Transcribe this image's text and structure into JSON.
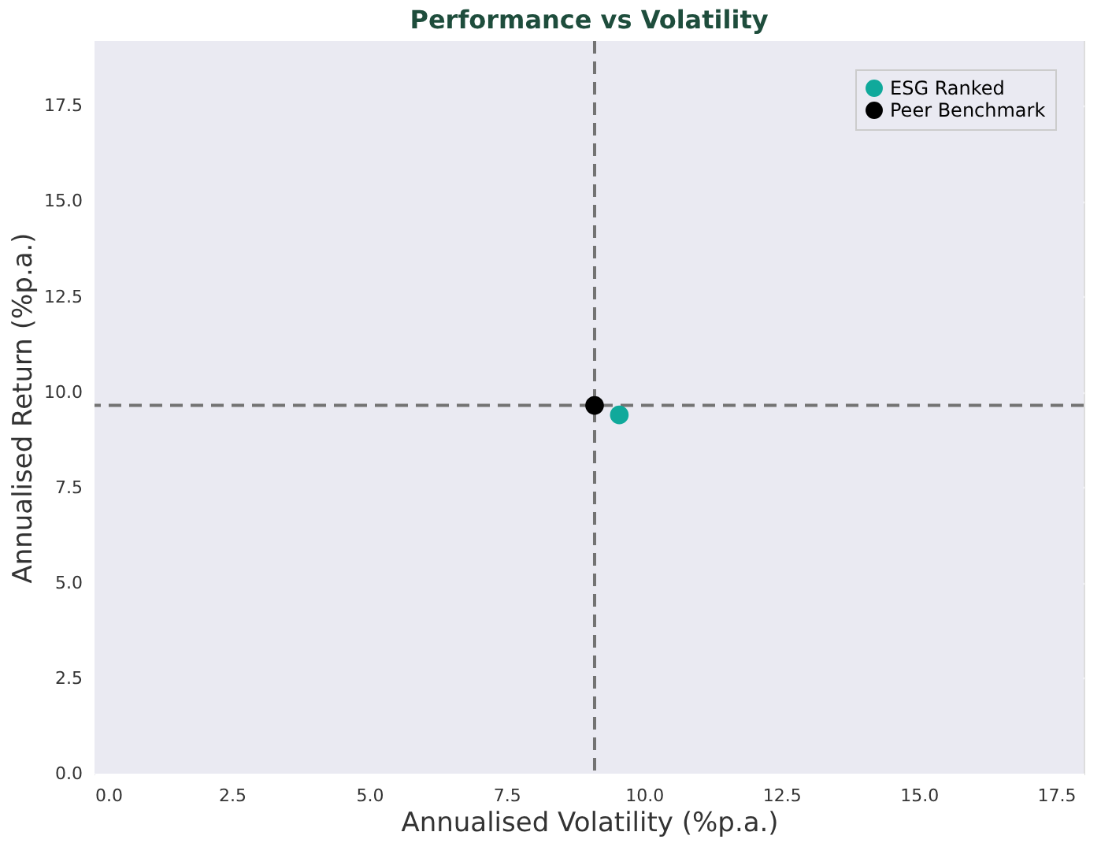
{
  "chart_data": {
    "type": "scatter",
    "title": "Performance vs Volatility",
    "xlabel": "Annualised Volatility (%p.a.)",
    "ylabel": "Annualised Return (%p.a.)",
    "series": [
      {
        "name": "ESG Ranked",
        "color": "#10a99b",
        "x": [
          9.55
        ],
        "values": [
          9.4
        ]
      },
      {
        "name": "Peer Benchmark",
        "color": "#000000",
        "x": [
          9.1
        ],
        "values": [
          9.65
        ]
      }
    ],
    "ref_lines": [
      {
        "axis": "x",
        "value": 9.1,
        "color": "#737373",
        "line_style": "dashed"
      },
      {
        "axis": "y",
        "value": 9.65,
        "color": "#737373",
        "line_style": "dashed"
      }
    ],
    "xlim": [
      0,
      18
    ],
    "ylim": [
      0,
      19.2
    ],
    "xticks": [
      {
        "value": 0,
        "label": "0.0"
      },
      2.5,
      {
        "value": 5,
        "label": "5.0"
      },
      7.5,
      {
        "value": 10,
        "label": "10.0"
      },
      12.5,
      {
        "value": 15,
        "label": "15.0"
      },
      17.5
    ],
    "yticks": [
      {
        "value": 0,
        "label": "0.0"
      },
      2.5,
      {
        "value": 5,
        "label": "5.0"
      },
      7.5,
      {
        "value": 10,
        "label": "10.0"
      },
      12.5,
      {
        "value": 15,
        "label": "15.0"
      },
      17.5
    ],
    "grid": true,
    "legend": "top right",
    "marker": "circle"
  }
}
